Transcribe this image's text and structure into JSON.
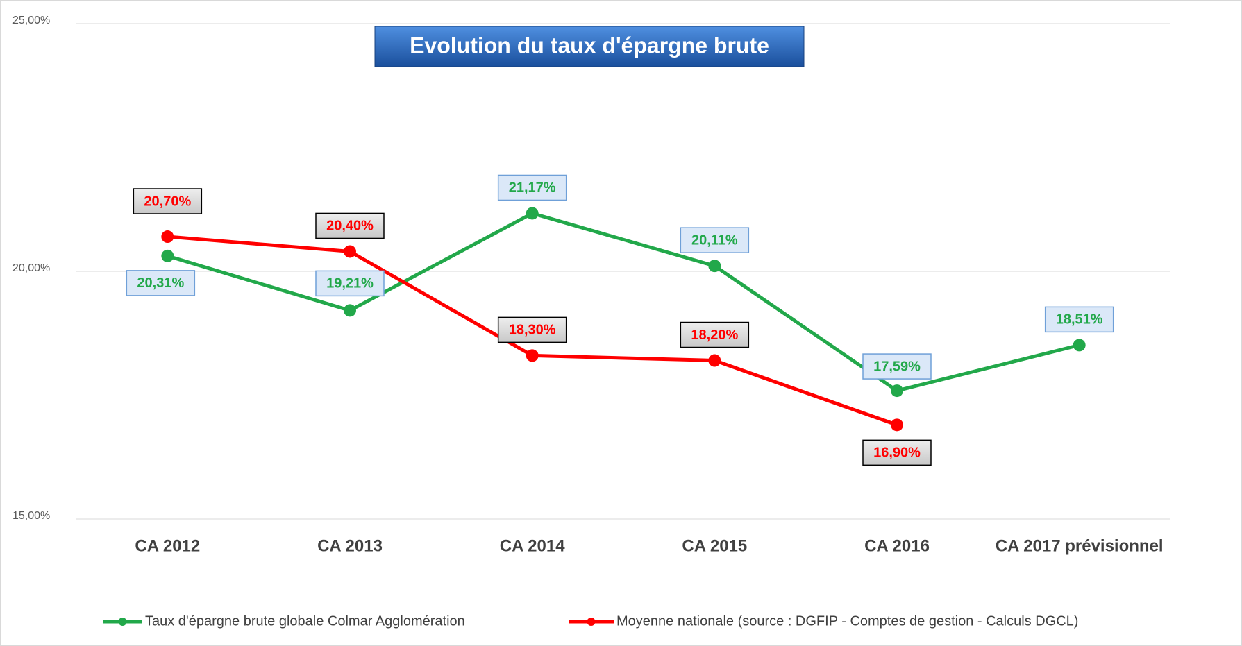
{
  "chart_data": {
    "type": "line",
    "title": "Evolution du taux d'épargne brute",
    "categories": [
      "CA 2012",
      "CA 2013",
      "CA 2014",
      "CA 2015",
      "CA 2016",
      "CA 2017 prévisionnel"
    ],
    "series": [
      {
        "name": "Taux d'épargne brute globale Colmar Agglomération",
        "color": "#22a84a",
        "values": [
          20.31,
          19.21,
          21.17,
          20.11,
          17.59,
          18.51
        ],
        "value_labels": [
          "20,31%",
          "19,21%",
          "21,17%",
          "20,11%",
          "17,59%",
          "18,51%"
        ]
      },
      {
        "name": "Moyenne nationale (source : DGFIP - Comptes de gestion - Calculs DGCL)",
        "color": "#ff0000",
        "values": [
          20.7,
          20.4,
          18.3,
          18.2,
          16.9,
          null
        ],
        "value_labels": [
          "20,70%",
          "20,40%",
          "18,30%",
          "18,20%",
          "16,90%",
          null
        ]
      }
    ],
    "ylim": [
      15,
      25
    ],
    "yticks": [
      {
        "value": 15,
        "label": "15,00%"
      },
      {
        "value": 20,
        "label": "20,00%"
      },
      {
        "value": 25,
        "label": "25,00%"
      }
    ],
    "grid": true,
    "legend": "bottom"
  }
}
